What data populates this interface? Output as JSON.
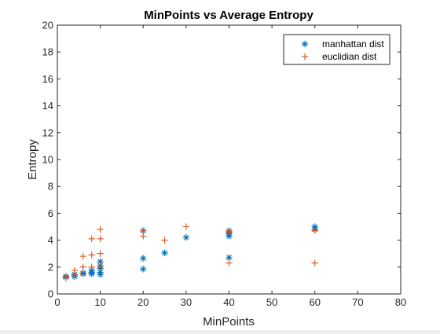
{
  "chart_data": {
    "type": "scatter",
    "title": "MinPoints vs Average Entropy",
    "xlabel": "MinPoints",
    "ylabel": "Entropy",
    "xlim": [
      0,
      80
    ],
    "ylim": [
      0,
      20
    ],
    "xticks": [
      0,
      10,
      20,
      30,
      40,
      50,
      60,
      70,
      80
    ],
    "yticks": [
      0,
      2,
      4,
      6,
      8,
      10,
      12,
      14,
      16,
      18,
      20
    ],
    "grid": false,
    "legend_position": "top-right",
    "series": [
      {
        "name": "manhattan dist",
        "marker": "asterisk",
        "color": "#0072BD",
        "points": [
          [
            2,
            1.25
          ],
          [
            2,
            1.3
          ],
          [
            4,
            1.3
          ],
          [
            4,
            1.45
          ],
          [
            6,
            1.5
          ],
          [
            6,
            1.55
          ],
          [
            8,
            1.5
          ],
          [
            8,
            1.6
          ],
          [
            8,
            1.75
          ],
          [
            10,
            1.45
          ],
          [
            10,
            1.6
          ],
          [
            10,
            1.9
          ],
          [
            10,
            2.1
          ],
          [
            10,
            2.4
          ],
          [
            20,
            1.85
          ],
          [
            20,
            2.65
          ],
          [
            20,
            4.7
          ],
          [
            25,
            3.05
          ],
          [
            30,
            4.2
          ],
          [
            40,
            2.7
          ],
          [
            40,
            4.3
          ],
          [
            40,
            4.5
          ],
          [
            40,
            4.7
          ],
          [
            60,
            4.8
          ],
          [
            60,
            5.0
          ]
        ]
      },
      {
        "name": "euclidian dist",
        "marker": "plus",
        "color": "#D95319",
        "points": [
          [
            2,
            1.2
          ],
          [
            2,
            1.3
          ],
          [
            4,
            1.4
          ],
          [
            4,
            1.75
          ],
          [
            6,
            1.5
          ],
          [
            6,
            2.0
          ],
          [
            6,
            2.8
          ],
          [
            8,
            2.0
          ],
          [
            8,
            2.9
          ],
          [
            8,
            4.1
          ],
          [
            10,
            2.1
          ],
          [
            10,
            3.0
          ],
          [
            10,
            4.1
          ],
          [
            10,
            4.8
          ],
          [
            20,
            4.3
          ],
          [
            20,
            4.7
          ],
          [
            25,
            4.0
          ],
          [
            30,
            5.0
          ],
          [
            40,
            2.3
          ],
          [
            40,
            4.6
          ],
          [
            40,
            4.7
          ],
          [
            60,
            2.3
          ],
          [
            60,
            4.7
          ]
        ]
      }
    ]
  }
}
